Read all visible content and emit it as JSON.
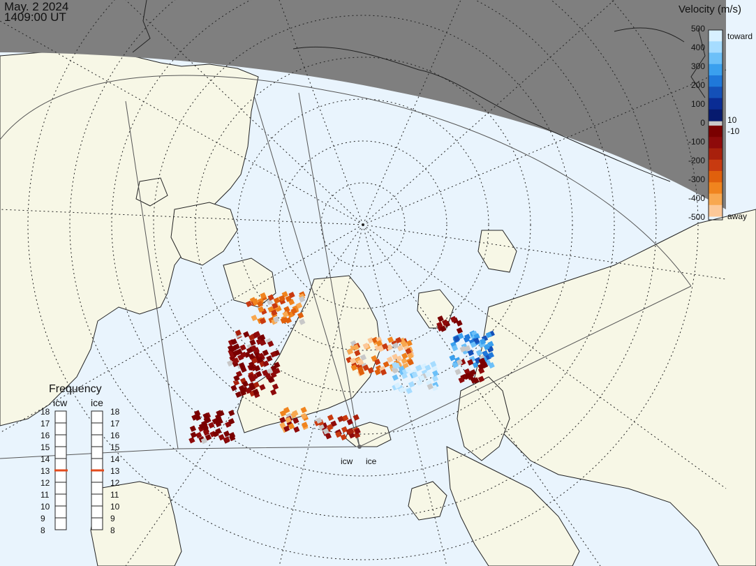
{
  "header": {
    "date": "May. 2 2024",
    "time": "1409:00 UT"
  },
  "velocity_legend": {
    "title": "Velocity (m/s)",
    "ticks": [
      "500",
      "400",
      "300",
      "200",
      "100",
      "0",
      "-100",
      "-200",
      "-300",
      "-400",
      "-500"
    ],
    "toward_label": "toward",
    "away_label": "away",
    "pos_threshold": "10",
    "neg_threshold": "-10",
    "colors_toward": [
      "#d8f0ff",
      "#a6dcff",
      "#6cc0f8",
      "#3aa0ee",
      "#1f78da",
      "#1450b8",
      "#0a2c94",
      "#061a6e"
    ],
    "colors_away": [
      "#7a0000",
      "#8e0a0a",
      "#a8200c",
      "#c83a10",
      "#e0600c",
      "#f0841e",
      "#f8a850",
      "#fcc898"
    ],
    "ground_scatter_color": "#c8c8c8"
  },
  "frequency_panel": {
    "title": "Frequency",
    "radars": [
      {
        "name": "icw",
        "value": 13
      },
      {
        "name": "ice",
        "value": 13
      }
    ],
    "ticks": [
      "18",
      "17",
      "16",
      "15",
      "14",
      "13",
      "12",
      "11",
      "10",
      "9",
      "8"
    ]
  },
  "radar_sites": [
    {
      "name": "icw"
    },
    {
      "name": "ice"
    }
  ],
  "map_colors": {
    "ocean": "#e9f4fd",
    "land": "#f7f7e6",
    "night": "#7f7f7f"
  }
}
